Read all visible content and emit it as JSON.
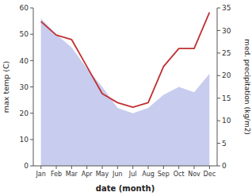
{
  "chart_data": {
    "type": "area",
    "categories": [
      "Jan",
      "Feb",
      "Mar",
      "Apr",
      "May",
      "Jun",
      "Jul",
      "Aug",
      "Sep",
      "Oct",
      "Nov",
      "Dec"
    ],
    "series": [
      {
        "type": "area",
        "color": "#c8ccee",
        "values": [
          56,
          50,
          45,
          37,
          30,
          22,
          20,
          22,
          27,
          30,
          28,
          35
        ]
      },
      {
        "type": "line",
        "color": "#c03030",
        "axis": "y2",
        "values": [
          32,
          29,
          28,
          22,
          16,
          14,
          13,
          14,
          22,
          26,
          26,
          34
        ]
      }
    ],
    "xlabel": "date (month)",
    "ylabel": "max temp (C)",
    "y2label": "med. precipitation (kg/m2)",
    "ylim": [
      0,
      60
    ],
    "yticks": [
      0,
      10,
      20,
      30,
      40,
      50,
      60
    ],
    "y2lim": [
      0,
      35
    ],
    "y2ticks": [
      0,
      5,
      10,
      15,
      20,
      25,
      30,
      35
    ],
    "grid": false
  }
}
